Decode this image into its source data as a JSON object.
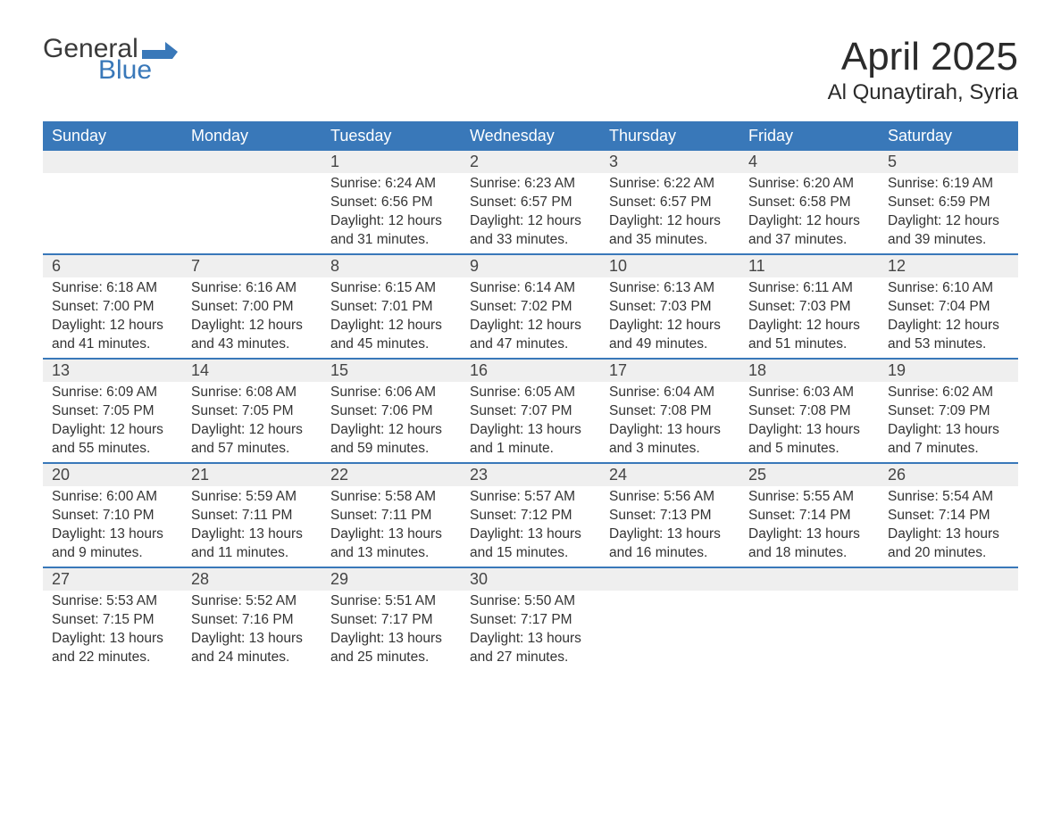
{
  "logo": {
    "text1": "General",
    "text2": "Blue",
    "flag_color": "#3978b9"
  },
  "title": "April 2025",
  "location": "Al Qunaytirah, Syria",
  "colors": {
    "header_bg": "#3978b9",
    "header_fg": "#ffffff",
    "daynum_bg": "#efefef",
    "row_border": "#3978b9",
    "text": "#333333",
    "page_bg": "#ffffff"
  },
  "typography": {
    "title_fontsize": 44,
    "location_fontsize": 24,
    "dayheader_fontsize": 18,
    "daynum_fontsize": 18,
    "body_fontsize": 15.5,
    "font_family": "Segoe UI"
  },
  "layout": {
    "columns": 7,
    "rows": 5,
    "first_weekday": "Sunday"
  },
  "day_headers": [
    "Sunday",
    "Monday",
    "Tuesday",
    "Wednesday",
    "Thursday",
    "Friday",
    "Saturday"
  ],
  "labels": {
    "sunrise": "Sunrise:",
    "sunset": "Sunset:",
    "daylight": "Daylight:"
  },
  "weeks": [
    [
      null,
      null,
      {
        "n": "1",
        "sunrise": "6:24 AM",
        "sunset": "6:56 PM",
        "daylight": "12 hours and 31 minutes."
      },
      {
        "n": "2",
        "sunrise": "6:23 AM",
        "sunset": "6:57 PM",
        "daylight": "12 hours and 33 minutes."
      },
      {
        "n": "3",
        "sunrise": "6:22 AM",
        "sunset": "6:57 PM",
        "daylight": "12 hours and 35 minutes."
      },
      {
        "n": "4",
        "sunrise": "6:20 AM",
        "sunset": "6:58 PM",
        "daylight": "12 hours and 37 minutes."
      },
      {
        "n": "5",
        "sunrise": "6:19 AM",
        "sunset": "6:59 PM",
        "daylight": "12 hours and 39 minutes."
      }
    ],
    [
      {
        "n": "6",
        "sunrise": "6:18 AM",
        "sunset": "7:00 PM",
        "daylight": "12 hours and 41 minutes."
      },
      {
        "n": "7",
        "sunrise": "6:16 AM",
        "sunset": "7:00 PM",
        "daylight": "12 hours and 43 minutes."
      },
      {
        "n": "8",
        "sunrise": "6:15 AM",
        "sunset": "7:01 PM",
        "daylight": "12 hours and 45 minutes."
      },
      {
        "n": "9",
        "sunrise": "6:14 AM",
        "sunset": "7:02 PM",
        "daylight": "12 hours and 47 minutes."
      },
      {
        "n": "10",
        "sunrise": "6:13 AM",
        "sunset": "7:03 PM",
        "daylight": "12 hours and 49 minutes."
      },
      {
        "n": "11",
        "sunrise": "6:11 AM",
        "sunset": "7:03 PM",
        "daylight": "12 hours and 51 minutes."
      },
      {
        "n": "12",
        "sunrise": "6:10 AM",
        "sunset": "7:04 PM",
        "daylight": "12 hours and 53 minutes."
      }
    ],
    [
      {
        "n": "13",
        "sunrise": "6:09 AM",
        "sunset": "7:05 PM",
        "daylight": "12 hours and 55 minutes."
      },
      {
        "n": "14",
        "sunrise": "6:08 AM",
        "sunset": "7:05 PM",
        "daylight": "12 hours and 57 minutes."
      },
      {
        "n": "15",
        "sunrise": "6:06 AM",
        "sunset": "7:06 PM",
        "daylight": "12 hours and 59 minutes."
      },
      {
        "n": "16",
        "sunrise": "6:05 AM",
        "sunset": "7:07 PM",
        "daylight": "13 hours and 1 minute."
      },
      {
        "n": "17",
        "sunrise": "6:04 AM",
        "sunset": "7:08 PM",
        "daylight": "13 hours and 3 minutes."
      },
      {
        "n": "18",
        "sunrise": "6:03 AM",
        "sunset": "7:08 PM",
        "daylight": "13 hours and 5 minutes."
      },
      {
        "n": "19",
        "sunrise": "6:02 AM",
        "sunset": "7:09 PM",
        "daylight": "13 hours and 7 minutes."
      }
    ],
    [
      {
        "n": "20",
        "sunrise": "6:00 AM",
        "sunset": "7:10 PM",
        "daylight": "13 hours and 9 minutes."
      },
      {
        "n": "21",
        "sunrise": "5:59 AM",
        "sunset": "7:11 PM",
        "daylight": "13 hours and 11 minutes."
      },
      {
        "n": "22",
        "sunrise": "5:58 AM",
        "sunset": "7:11 PM",
        "daylight": "13 hours and 13 minutes."
      },
      {
        "n": "23",
        "sunrise": "5:57 AM",
        "sunset": "7:12 PM",
        "daylight": "13 hours and 15 minutes."
      },
      {
        "n": "24",
        "sunrise": "5:56 AM",
        "sunset": "7:13 PM",
        "daylight": "13 hours and 16 minutes."
      },
      {
        "n": "25",
        "sunrise": "5:55 AM",
        "sunset": "7:14 PM",
        "daylight": "13 hours and 18 minutes."
      },
      {
        "n": "26",
        "sunrise": "5:54 AM",
        "sunset": "7:14 PM",
        "daylight": "13 hours and 20 minutes."
      }
    ],
    [
      {
        "n": "27",
        "sunrise": "5:53 AM",
        "sunset": "7:15 PM",
        "daylight": "13 hours and 22 minutes."
      },
      {
        "n": "28",
        "sunrise": "5:52 AM",
        "sunset": "7:16 PM",
        "daylight": "13 hours and 24 minutes."
      },
      {
        "n": "29",
        "sunrise": "5:51 AM",
        "sunset": "7:17 PM",
        "daylight": "13 hours and 25 minutes."
      },
      {
        "n": "30",
        "sunrise": "5:50 AM",
        "sunset": "7:17 PM",
        "daylight": "13 hours and 27 minutes."
      },
      null,
      null,
      null
    ]
  ]
}
